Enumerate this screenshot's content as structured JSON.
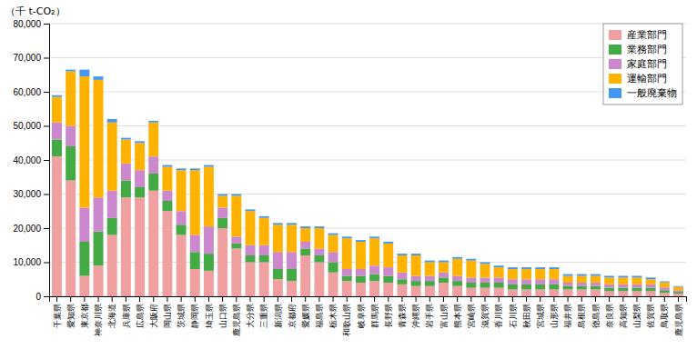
{
  "chart_data": {
    "type": "bar",
    "stacked": true,
    "grid": true,
    "legend": "upper-right",
    "ylabel": "（千 t-CO₂）",
    "categories": [
      "千葉県",
      "愛知県",
      "東京都",
      "神奈川県",
      "北海道",
      "兵庫県",
      "広島県",
      "大阪府",
      "岡山県",
      "茨城県",
      "静岡県",
      "埼玉県",
      "山口県",
      "鹿児島県",
      "大分県",
      "三重県",
      "新潟県",
      "京都府",
      "愛媛県",
      "福島県",
      "栃木県",
      "和歌山県",
      "岐阜県",
      "群馬県",
      "長野県",
      "青森県",
      "沖縄県",
      "岩手県",
      "富山県",
      "熊本県",
      "宮崎県",
      "滋賀県",
      "香川県",
      "石川県",
      "秋田県",
      "宮城県",
      "山形県",
      "福井県",
      "島根県",
      "徳島県",
      "奈良県",
      "高知県",
      "山梨県",
      "佐賀県",
      "鳥取県",
      "鹿児島県"
    ],
    "series": [
      {
        "name": "産業部門",
        "color": "#F0A0A0",
        "values": [
          41000,
          34000,
          6000,
          9000,
          18000,
          29000,
          29000,
          31000,
          25000,
          18000,
          8000,
          7500,
          20000,
          14000,
          10000,
          10000,
          5000,
          4500,
          12000,
          10000,
          7000,
          4500,
          4000,
          4500,
          4000,
          3500,
          3000,
          3000,
          4000,
          3000,
          2500,
          2500,
          2500,
          2000,
          2000,
          2000,
          2000,
          2000,
          2000,
          2000,
          1500,
          1500,
          1500,
          1500,
          1000,
          800
        ]
      },
      {
        "name": "業務部門",
        "color": "#44AA44",
        "values": [
          5000,
          10000,
          10000,
          10000,
          5000,
          5000,
          3000,
          5000,
          3000,
          3000,
          5000,
          5000,
          3000,
          1500,
          2000,
          2000,
          3000,
          3500,
          2000,
          2000,
          3000,
          1500,
          2000,
          2000,
          2000,
          1500,
          1500,
          1500,
          1500,
          1500,
          1500,
          1500,
          1500,
          1500,
          1500,
          1500,
          1500,
          1000,
          1000,
          1000,
          1000,
          1000,
          1000,
          1000,
          800,
          500
        ]
      },
      {
        "name": "家庭部門",
        "color": "#CC88CC",
        "values": [
          5000,
          6000,
          10000,
          10000,
          8000,
          5000,
          5000,
          5000,
          3000,
          4000,
          5000,
          8000,
          3000,
          2000,
          3000,
          3000,
          5000,
          5000,
          2000,
          2000,
          3000,
          2000,
          2000,
          2500,
          2500,
          2000,
          1500,
          1500,
          1500,
          1500,
          1500,
          1500,
          1500,
          1500,
          1500,
          1500,
          1500,
          1000,
          1000,
          1000,
          1000,
          1000,
          1000,
          1000,
          800,
          500
        ]
      },
      {
        "name": "運輸部門",
        "color": "#FFB300",
        "values": [
          7500,
          16000,
          38500,
          34500,
          20000,
          7000,
          8000,
          10000,
          7000,
          12000,
          19000,
          17500,
          3500,
          12000,
          10000,
          8000,
          8000,
          8000,
          4000,
          6000,
          5000,
          9000,
          8000,
          8000,
          7000,
          5000,
          6000,
          4000,
          3000,
          5000,
          5000,
          4000,
          3000,
          3000,
          3000,
          3000,
          3000,
          2000,
          2000,
          2000,
          2000,
          2000,
          2000,
          1500,
          1500,
          1000
        ]
      },
      {
        "name": "一般廃棄物",
        "color": "#4499EE",
        "values": [
          500,
          500,
          2000,
          1000,
          1000,
          500,
          500,
          500,
          500,
          500,
          500,
          500,
          500,
          500,
          500,
          500,
          500,
          500,
          500,
          500,
          500,
          500,
          500,
          500,
          500,
          500,
          500,
          500,
          500,
          500,
          500,
          500,
          500,
          500,
          500,
          500,
          500,
          500,
          500,
          500,
          500,
          500,
          500,
          500,
          300,
          200
        ]
      }
    ],
    "ylim": [
      0,
      80000
    ],
    "yticks": [
      0,
      {
        "value": 10000,
        "label": "10,000"
      },
      {
        "value": 20000,
        "label": "20,000"
      },
      {
        "value": 30000,
        "label": "30,000"
      },
      {
        "value": 40000,
        "label": "40,000"
      },
      {
        "value": 50000,
        "label": "50,000"
      },
      {
        "value": 60000,
        "label": "60,000"
      },
      {
        "value": 70000,
        "label": "70,000"
      },
      {
        "value": 80000,
        "label": "80,000"
      }
    ]
  }
}
